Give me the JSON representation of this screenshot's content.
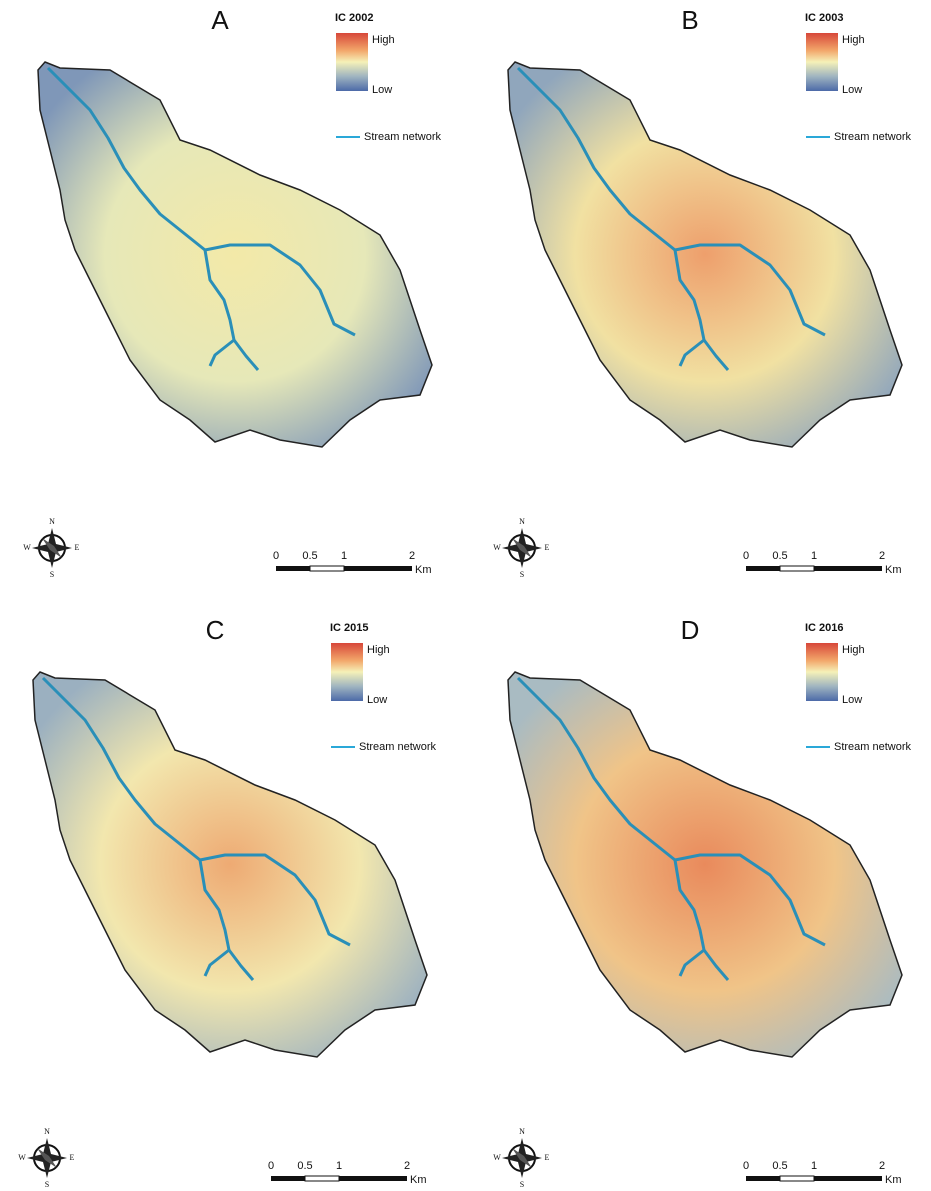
{
  "panels": [
    {
      "letter": "A",
      "legend_title": "IC 2002",
      "high": "High",
      "low": "Low",
      "stream": "Stream network",
      "compass": {
        "n": "N",
        "s": "S",
        "e": "E",
        "w": "W"
      },
      "scale": [
        "0",
        "0.5",
        "1",
        "2"
      ],
      "unit": "Km"
    },
    {
      "letter": "B",
      "legend_title": "IC 2003",
      "high": "High",
      "low": "Low",
      "stream": "Stream network",
      "compass": {
        "n": "N",
        "s": "S",
        "e": "E",
        "w": "W"
      },
      "scale": [
        "0",
        "0.5",
        "1",
        "2"
      ],
      "unit": "Km"
    },
    {
      "letter": "C",
      "legend_title": "IC 2015",
      "high": "High",
      "low": "Low",
      "stream": "Stream network",
      "compass": {
        "n": "N",
        "s": "S",
        "e": "E",
        "w": "W"
      },
      "scale": [
        "0",
        "0.5",
        "1",
        "2"
      ],
      "unit": "Km"
    },
    {
      "letter": "D",
      "legend_title": "IC 2016",
      "high": "High",
      "low": "Low",
      "stream": "Stream network",
      "compass": {
        "n": "N",
        "s": "S",
        "e": "E",
        "w": "W"
      },
      "scale": [
        "0",
        "0.5",
        "1",
        "2"
      ],
      "unit": "Km"
    }
  ]
}
